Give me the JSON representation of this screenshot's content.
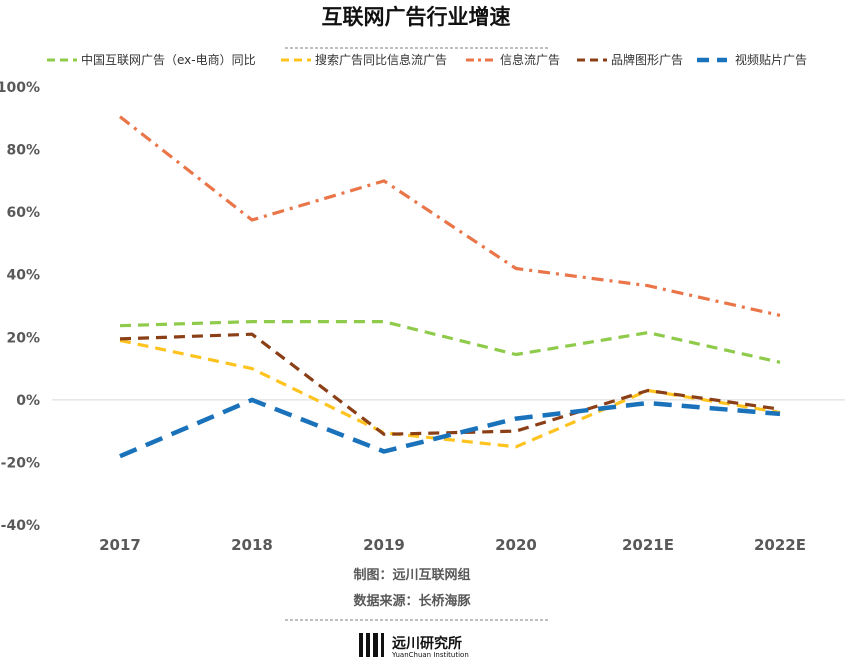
{
  "chart_data": {
    "type": "line",
    "title": "互联网广告行业增速",
    "categories": [
      "2017",
      "2018",
      "2019",
      "2020",
      "2021E",
      "2022E"
    ],
    "y_ticks": [
      "100%",
      "80%",
      "60%",
      "40%",
      "20%",
      "0%",
      "-20%",
      "-40%"
    ],
    "ylim": [
      -40,
      100
    ],
    "grid": false,
    "legend_position": "top",
    "series": [
      {
        "name": "中国互联网广告（ex-电商）同比",
        "color": "#8fcb4b",
        "dash": "dash",
        "values": [
          23.7,
          25.0,
          25.0,
          14.5,
          21.5,
          12.0
        ]
      },
      {
        "name": "搜索广告同比信息流广告",
        "color": "#ffc31f",
        "dash": "dash",
        "values": [
          19.0,
          10.0,
          -10.5,
          -15.0,
          3.0,
          -4.0
        ]
      },
      {
        "name": "信息流广告",
        "color": "#e97548",
        "dash": "dashdot",
        "values": [
          90.5,
          57.5,
          70.0,
          42.0,
          36.5,
          27.0
        ]
      },
      {
        "name": "品牌图形广告",
        "color": "#8b3f16",
        "dash": "dash",
        "values": [
          19.5,
          21.0,
          -11.0,
          -10.0,
          3.0,
          -3.0
        ]
      },
      {
        "name": "视频贴片广告",
        "color": "#1a72bb",
        "dash": "longdash",
        "values": [
          -18.0,
          0.0,
          -16.5,
          -6.0,
          -1.0,
          -4.5
        ]
      }
    ]
  },
  "footer": {
    "producer": "制图：远川互联网组",
    "source": "数据来源：长桥海豚",
    "logo_cn": "远川研究所",
    "logo_en": "YuanChuan Institution"
  }
}
